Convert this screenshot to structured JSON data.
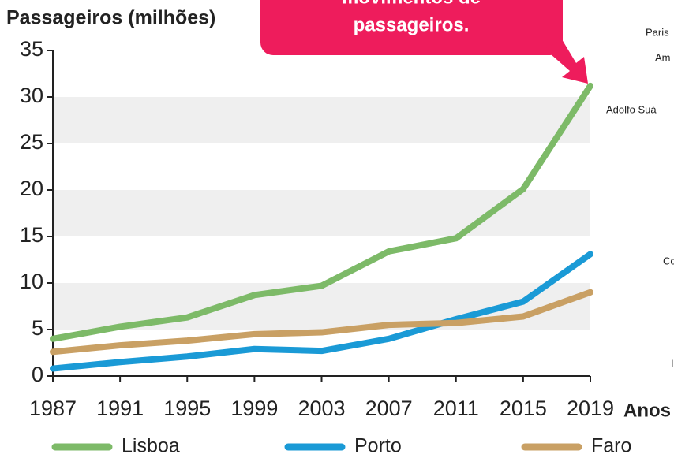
{
  "chart_data": {
    "type": "line",
    "title": "Passageiros (milhões)",
    "x_label": "Anos",
    "x": [
      1987,
      1991,
      1995,
      1999,
      2003,
      2007,
      2011,
      2015,
      2019
    ],
    "series": [
      {
        "name": "Lisboa",
        "color": "#7dba68",
        "values": [
          4,
          5.3,
          6.3,
          8.7,
          9.7,
          13.4,
          14.8,
          20.1,
          31.2
        ]
      },
      {
        "name": "Porto",
        "color": "#1a9ad6",
        "values": [
          0.8,
          1.5,
          2.1,
          2.9,
          2.7,
          4,
          6.1,
          8,
          13.1
        ]
      },
      {
        "name": "Faro",
        "color": "#c9a064",
        "values": [
          2.6,
          3.3,
          3.8,
          4.5,
          4.7,
          5.5,
          5.7,
          6.4,
          9
        ]
      }
    ],
    "xlim": [
      1987,
      2019
    ],
    "xticks": [
      1987,
      1991,
      1995,
      1999,
      2003,
      2007,
      2011,
      2015,
      2019
    ],
    "ylim": [
      0,
      35
    ],
    "yticks": [
      0,
      5,
      10,
      15,
      20,
      25,
      30,
      35
    ],
    "grid_bands": true,
    "legend": "bottom",
    "annotation": [
      "movimentos de",
      "passageiros."
    ],
    "side_labels": [
      "Paris",
      "Am",
      "Adolfo Suá",
      "Co",
      "I"
    ]
  }
}
